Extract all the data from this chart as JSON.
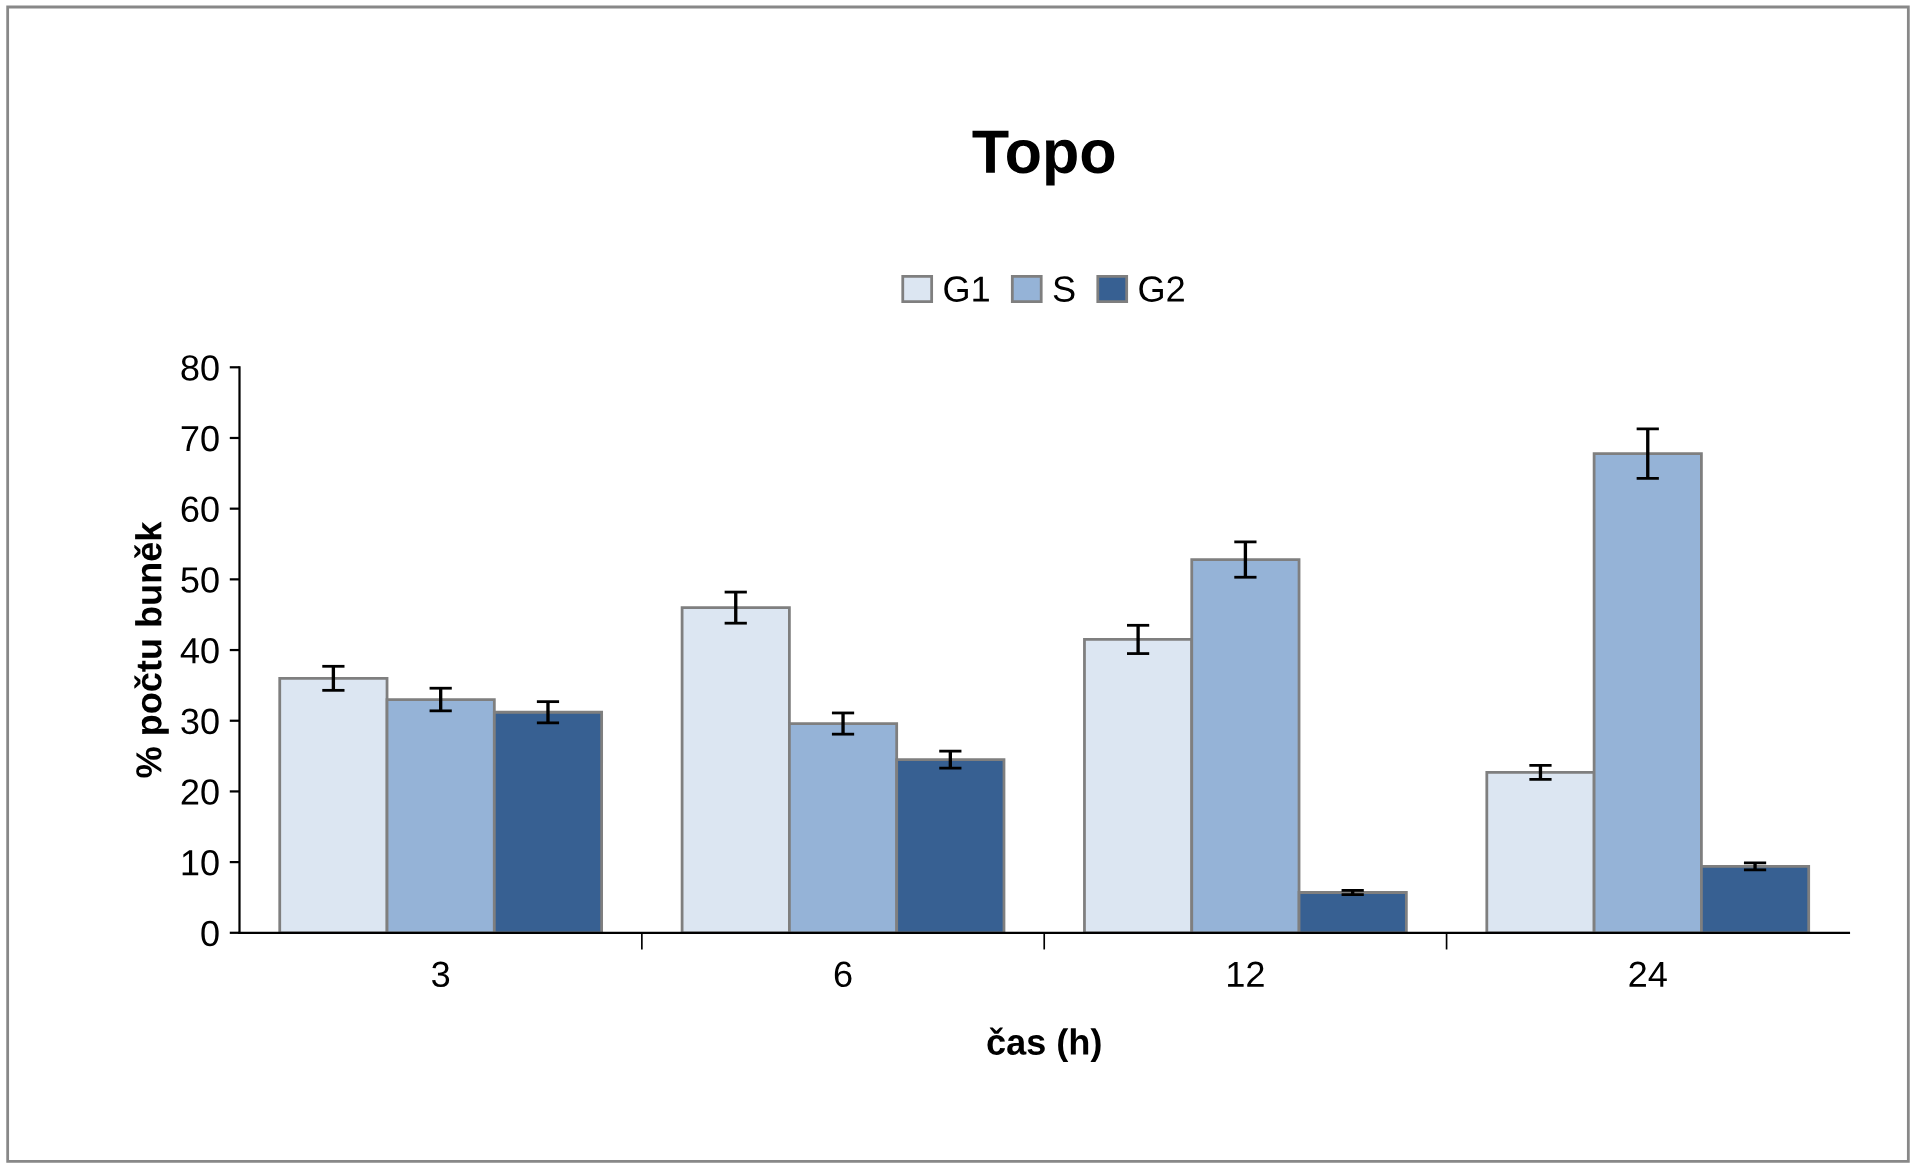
{
  "chart_data": {
    "type": "bar",
    "title": "Topo",
    "xlabel": "čas (h)",
    "ylabel": "% počtu buněk",
    "categories": [
      "3",
      "6",
      "12",
      "24"
    ],
    "series": [
      {
        "name": "G1",
        "color": "#dce6f2",
        "values": [
          36,
          46,
          41.5,
          22.7
        ],
        "errors": [
          1.7,
          2.2,
          2.0,
          1.0
        ]
      },
      {
        "name": "S",
        "color": "#95b3d7",
        "values": [
          33,
          29.6,
          52.8,
          67.8
        ],
        "errors": [
          1.6,
          1.5,
          2.5,
          3.5
        ]
      },
      {
        "name": "G2",
        "color": "#376092",
        "values": [
          31.2,
          24.5,
          5.7,
          9.4
        ],
        "errors": [
          1.5,
          1.2,
          0.3,
          0.5
        ]
      }
    ],
    "ylim": [
      0,
      80
    ],
    "yticks": [
      0,
      10,
      20,
      30,
      40,
      50,
      60,
      70,
      80
    ],
    "grid": false,
    "legend": "top"
  }
}
